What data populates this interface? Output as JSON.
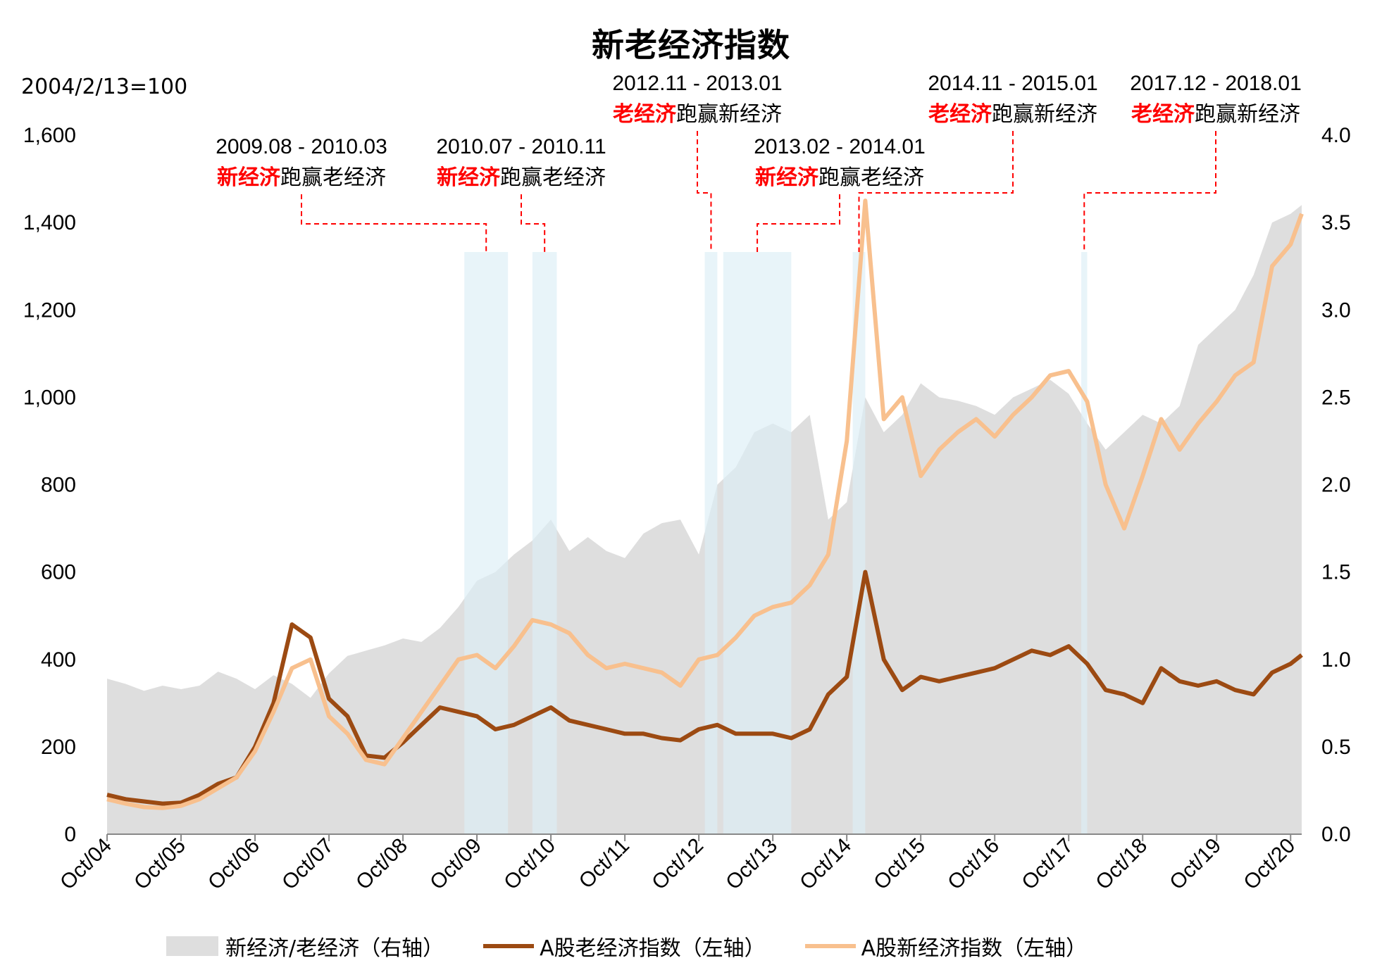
{
  "title": "新老经济指数",
  "base_note": "2004/2/13=100",
  "chart_data": {
    "type": "line",
    "title": "新老经济指数",
    "left_axis": {
      "ylim": [
        0,
        1600
      ],
      "ticks": [
        "0",
        "200",
        "400",
        "600",
        "800",
        "1,000",
        "1,200",
        "1,400",
        "1,600"
      ]
    },
    "right_axis": {
      "ylim": [
        0,
        4.0
      ],
      "ticks": [
        "0.0",
        "0.5",
        "1.0",
        "1.5",
        "2.0",
        "2.5",
        "3.0",
        "3.5",
        "4.0"
      ]
    },
    "x_range": [
      2004.75,
      2020.9
    ],
    "x_ticks": [
      "Oct/04",
      "Oct/05",
      "Oct/06",
      "Oct/07",
      "Oct/08",
      "Oct/09",
      "Oct/10",
      "Oct/11",
      "Oct/12",
      "Oct/13",
      "Oct/14",
      "Oct/15",
      "Oct/16",
      "Oct/17",
      "Oct/18",
      "Oct/19",
      "Oct/20"
    ],
    "grid": false,
    "legend_position": "bottom",
    "colors": {
      "ratio": "#dedede",
      "old": "#9c4a12",
      "new": "#f8c08e",
      "shade": "#dbeef6",
      "annotation": "#ff0000"
    },
    "series": [
      {
        "name": "新经济/老经济（右轴）",
        "axis": "right",
        "style": "area",
        "x": [
          2004.75,
          2005.0,
          2005.25,
          2005.5,
          2005.75,
          2006.0,
          2006.25,
          2006.5,
          2006.75,
          2007.0,
          2007.25,
          2007.5,
          2007.75,
          2008.0,
          2008.25,
          2008.5,
          2008.75,
          2009.0,
          2009.25,
          2009.5,
          2009.75,
          2010.0,
          2010.25,
          2010.5,
          2010.75,
          2011.0,
          2011.25,
          2011.5,
          2011.75,
          2012.0,
          2012.25,
          2012.5,
          2012.75,
          2013.0,
          2013.25,
          2013.5,
          2013.75,
          2014.0,
          2014.25,
          2014.5,
          2014.75,
          2015.0,
          2015.25,
          2015.5,
          2015.75,
          2016.0,
          2016.25,
          2016.5,
          2016.75,
          2017.0,
          2017.25,
          2017.5,
          2017.75,
          2018.0,
          2018.25,
          2018.5,
          2018.75,
          2019.0,
          2019.25,
          2019.5,
          2019.75,
          2020.0,
          2020.25,
          2020.5,
          2020.75,
          2020.9
        ],
        "values": [
          0.89,
          0.86,
          0.82,
          0.85,
          0.83,
          0.85,
          0.93,
          0.89,
          0.83,
          0.91,
          0.86,
          0.78,
          0.92,
          1.02,
          1.05,
          1.08,
          1.12,
          1.1,
          1.18,
          1.3,
          1.45,
          1.5,
          1.6,
          1.68,
          1.8,
          1.62,
          1.7,
          1.62,
          1.58,
          1.72,
          1.78,
          1.8,
          1.6,
          2.0,
          2.1,
          2.3,
          2.35,
          2.3,
          2.4,
          1.8,
          1.9,
          2.5,
          2.3,
          2.4,
          2.58,
          2.5,
          2.48,
          2.45,
          2.4,
          2.5,
          2.55,
          2.6,
          2.52,
          2.35,
          2.2,
          2.3,
          2.4,
          2.35,
          2.45,
          2.8,
          2.9,
          3.0,
          3.2,
          3.5,
          3.55,
          3.6
        ]
      },
      {
        "name": "A股老经济指数（左轴）",
        "axis": "left",
        "style": "line",
        "x": [
          2004.75,
          2005.0,
          2005.25,
          2005.5,
          2005.75,
          2006.0,
          2006.25,
          2006.5,
          2006.75,
          2007.0,
          2007.25,
          2007.5,
          2007.75,
          2008.0,
          2008.25,
          2008.5,
          2008.75,
          2009.0,
          2009.25,
          2009.5,
          2009.75,
          2010.0,
          2010.25,
          2010.5,
          2010.75,
          2011.0,
          2011.25,
          2011.5,
          2011.75,
          2012.0,
          2012.25,
          2012.5,
          2012.75,
          2013.0,
          2013.25,
          2013.5,
          2013.75,
          2014.0,
          2014.25,
          2014.5,
          2014.75,
          2015.0,
          2015.25,
          2015.5,
          2015.75,
          2016.0,
          2016.25,
          2016.5,
          2016.75,
          2017.0,
          2017.25,
          2017.5,
          2017.75,
          2018.0,
          2018.25,
          2018.5,
          2018.75,
          2019.0,
          2019.25,
          2019.5,
          2019.75,
          2020.0,
          2020.25,
          2020.5,
          2020.75,
          2020.9
        ],
        "values": [
          90,
          80,
          75,
          70,
          72,
          90,
          115,
          130,
          200,
          300,
          480,
          450,
          310,
          270,
          180,
          175,
          210,
          250,
          290,
          280,
          270,
          240,
          250,
          270,
          290,
          260,
          250,
          240,
          230,
          230,
          220,
          215,
          240,
          250,
          230,
          230,
          230,
          220,
          240,
          320,
          360,
          600,
          400,
          330,
          360,
          350,
          360,
          370,
          380,
          400,
          420,
          410,
          430,
          390,
          330,
          320,
          300,
          380,
          350,
          340,
          350,
          330,
          320,
          370,
          390,
          410
        ]
      },
      {
        "name": "A股新经济指数（左轴）",
        "axis": "left",
        "style": "line",
        "x": [
          2004.75,
          2005.0,
          2005.25,
          2005.5,
          2005.75,
          2006.0,
          2006.25,
          2006.5,
          2006.75,
          2007.0,
          2007.25,
          2007.5,
          2007.75,
          2008.0,
          2008.25,
          2008.5,
          2008.75,
          2009.0,
          2009.25,
          2009.5,
          2009.75,
          2010.0,
          2010.25,
          2010.5,
          2010.75,
          2011.0,
          2011.25,
          2011.5,
          2011.75,
          2012.0,
          2012.25,
          2012.5,
          2012.75,
          2013.0,
          2013.25,
          2013.5,
          2013.75,
          2014.0,
          2014.25,
          2014.5,
          2014.75,
          2015.0,
          2015.25,
          2015.5,
          2015.75,
          2016.0,
          2016.25,
          2016.5,
          2016.75,
          2017.0,
          2017.25,
          2017.5,
          2017.75,
          2018.0,
          2018.25,
          2018.5,
          2018.75,
          2019.0,
          2019.25,
          2019.5,
          2019.75,
          2020.0,
          2020.25,
          2020.5,
          2020.75,
          2020.9
        ],
        "values": [
          80,
          70,
          62,
          60,
          65,
          80,
          105,
          130,
          190,
          280,
          380,
          400,
          270,
          230,
          170,
          160,
          220,
          280,
          340,
          400,
          410,
          380,
          430,
          490,
          480,
          460,
          410,
          380,
          390,
          380,
          370,
          340,
          400,
          410,
          450,
          500,
          520,
          530,
          570,
          640,
          900,
          1450,
          950,
          1000,
          820,
          880,
          920,
          950,
          910,
          960,
          1000,
          1050,
          1060,
          990,
          800,
          700,
          820,
          950,
          880,
          940,
          990,
          1050,
          1080,
          1300,
          1350,
          1420
        ]
      }
    ],
    "shaded_periods": [
      {
        "start": 2009.58,
        "end": 2010.17,
        "date_label": "2009.08 - 2010.03",
        "leader": "新经济",
        "label_rest": "跑赢老经济"
      },
      {
        "start": 2010.5,
        "end": 2010.83,
        "date_label": "2010.07 - 2010.11",
        "leader": "新经济",
        "label_rest": "跑赢老经济"
      },
      {
        "start": 2012.83,
        "end": 2013.0,
        "date_label": "2012.11 - 2013.01",
        "leader": "老经济",
        "label_rest": "跑赢新经济"
      },
      {
        "start": 2013.08,
        "end": 2014.0,
        "date_label": "2013.02 - 2014.01",
        "leader": "新经济",
        "label_rest": "跑赢老经济"
      },
      {
        "start": 2014.83,
        "end": 2015.0,
        "date_label": "2014.11 - 2015.01",
        "leader": "老经济",
        "label_rest": "跑赢新经济"
      },
      {
        "start": 2017.92,
        "end": 2018.0,
        "date_label": "2017.12 - 2018.01",
        "leader": "老经济",
        "label_rest": "跑赢新经济"
      }
    ]
  },
  "legend": [
    {
      "label": "新经济/老经济（右轴）",
      "kind": "area"
    },
    {
      "label": "A股老经济指数（左轴）",
      "kind": "line-old"
    },
    {
      "label": "A股新经济指数（左轴）",
      "kind": "line-new"
    }
  ]
}
